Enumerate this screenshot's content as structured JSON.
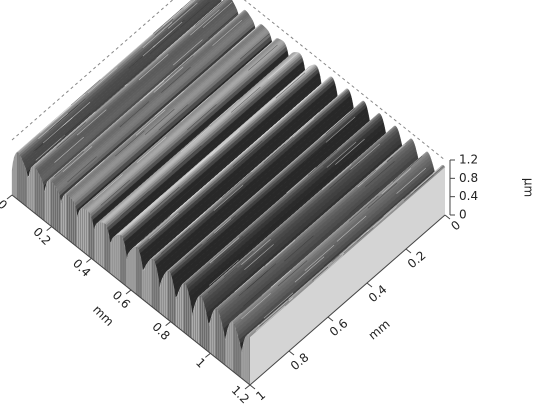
{
  "chart_data": {
    "type": "surface3d",
    "x_label": "mm",
    "y_label": "mm",
    "z_label": "µm",
    "xlim": [
      0,
      1.2
    ],
    "xticks": [
      0,
      0.2,
      0.4,
      0.6,
      0.8,
      1,
      1.2
    ],
    "ylim": [
      0,
      1
    ],
    "yticks": [
      0,
      0.2,
      0.4,
      0.6,
      0.8,
      1
    ],
    "zlim": [
      0,
      1.2
    ],
    "zticks": [
      0,
      0.4,
      0.8,
      1.2
    ]
  }
}
